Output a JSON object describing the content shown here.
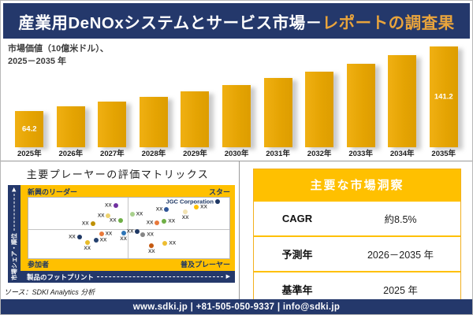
{
  "header": {
    "title_main": "産業用DeNOxシステムとサービス市場－",
    "title_accent": "レポートの調査果"
  },
  "chart_data": [
    {
      "type": "bar",
      "title": "市場価値（10億米ドル）、2025－2035年",
      "title_lines": [
        "市場価値（10億米ドル）、",
        "2025－2035 年"
      ],
      "categories": [
        "2025年",
        "2026年",
        "2027年",
        "2028年",
        "2029年",
        "2030年",
        "2031年",
        "2032年",
        "2033年",
        "2034年",
        "2035年"
      ],
      "values": [
        64.2,
        69.5,
        75.2,
        81.4,
        88.1,
        95.3,
        103.2,
        111.6,
        120.8,
        130.7,
        141.2
      ],
      "data_labels": [
        "64.2",
        "",
        "",
        "",
        "",
        "",
        "",
        "",
        "",
        "",
        "141.2"
      ],
      "ylabel": "市場価値（10億米ドル）",
      "xlabel": "",
      "bar_color": "#E7A50C",
      "grid": false,
      "legend": false
    },
    {
      "type": "scatter",
      "title": "主要プレーヤーの評価マトリックス",
      "x_axis_label": "製品のフットプリント",
      "y_axis_label": "市場シェア・順位",
      "quadrants": {
        "top_left": "新興のリーダー",
        "top_right": "スター",
        "bottom_left": "参加者",
        "bottom_right": "普及プレーヤー"
      },
      "points": [
        {
          "x": 43.4,
          "y": 13.6,
          "color": "#7030A0",
          "label": "XX",
          "label_pos": "left"
        },
        {
          "x": 39.8,
          "y": 29.6,
          "color": "#EDD26E",
          "label": "XX",
          "label_pos": "left"
        },
        {
          "x": 45.7,
          "y": 38.3,
          "color": "#6FAF46",
          "label": "XX",
          "label_pos": "left"
        },
        {
          "x": 32.0,
          "y": 43.2,
          "color": "#BE9000",
          "label": "XX",
          "label_pos": "left"
        },
        {
          "x": 36.3,
          "y": 59.3,
          "color": "#E8793B",
          "label": "XX",
          "label_pos": "right"
        },
        {
          "x": 47.3,
          "y": 58.0,
          "color": "#2E75B6",
          "label": "XX",
          "label_pos": "bottom"
        },
        {
          "x": 25.4,
          "y": 65.4,
          "color": "#1F3864",
          "label": "XX",
          "label_pos": "left"
        },
        {
          "x": 33.6,
          "y": 70.4,
          "color": "#24406E",
          "label": "XX",
          "label_pos": "right"
        },
        {
          "x": 29.3,
          "y": 74.1,
          "color": "#E8BC2A",
          "label": "XX",
          "label_pos": "bottom"
        },
        {
          "x": 94.1,
          "y": 6.0,
          "color": "#1F3864",
          "label": "JGC Corporation",
          "label_pos": "left",
          "named": true
        },
        {
          "x": 83.6,
          "y": 16.0,
          "color": "#FFC000",
          "label": "XX",
          "label_pos": "right"
        },
        {
          "x": 78.1,
          "y": 23.5,
          "color": "#F2E3B3",
          "label": "XX",
          "label_pos": "bottom"
        },
        {
          "x": 68.8,
          "y": 19.8,
          "color": "#2F5597",
          "label": "XX",
          "label_pos": "left"
        },
        {
          "x": 51.6,
          "y": 27.2,
          "color": "#A8D08D",
          "label": "XX",
          "label_pos": "right"
        },
        {
          "x": 64.1,
          "y": 42.0,
          "color": "#E8793B",
          "label": "XX",
          "label_pos": "left"
        },
        {
          "x": 67.6,
          "y": 39.5,
          "color": "#6FAF46",
          "label": "XX",
          "label_pos": "right"
        },
        {
          "x": 54.3,
          "y": 55.6,
          "color": "#1F3864",
          "label": "XX",
          "label_pos": "left"
        },
        {
          "x": 57.0,
          "y": 60.5,
          "color": "#858585",
          "label": "XX",
          "label_pos": "right"
        },
        {
          "x": 61.3,
          "y": 79.0,
          "color": "#C55A11",
          "label": "XX",
          "label_pos": "bottom"
        },
        {
          "x": 68.0,
          "y": 75.3,
          "color": "#EDBD31",
          "label": "XX",
          "label_pos": "right"
        }
      ]
    }
  ],
  "insights": {
    "title": "主要な市場洞察",
    "rows": [
      {
        "label": "CAGR",
        "value": "約8.5%"
      },
      {
        "label": "予測年",
        "value": "2026－2035 年"
      },
      {
        "label": "基準年",
        "value": "2025 年"
      }
    ]
  },
  "source_note": "ソース：SDKI Analytics 分析",
  "footer": {
    "contact": "www.sdki.jp | +81-505-050-9337 | info@sdki.jp"
  },
  "colors": {
    "navy": "#24386B",
    "navy_dark": "#1F3864",
    "bar_gold": "#E7A50C",
    "panel_gold": "#FFC000",
    "title_accent": "#E9A43C"
  }
}
